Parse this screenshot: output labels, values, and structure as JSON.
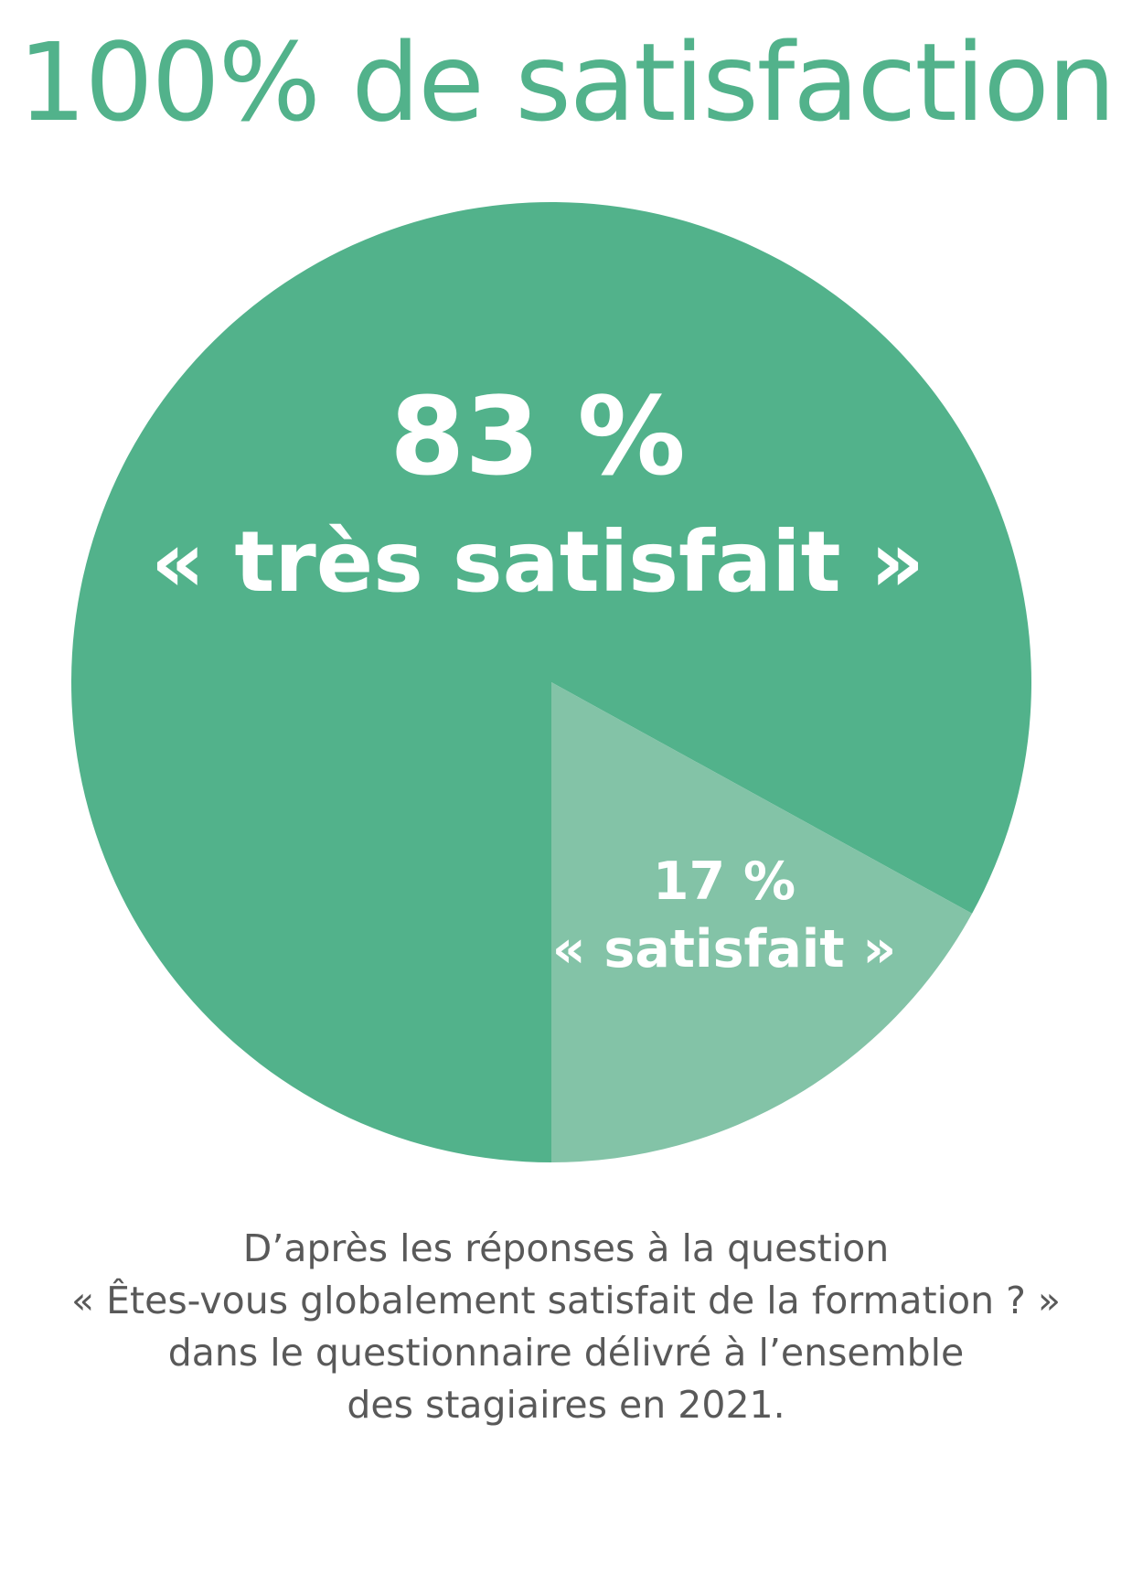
{
  "title": "100% de satisfaction",
  "colors": {
    "accent": "#52b28b",
    "slice_primary": "#52b28b",
    "slice_secondary": "#83c3a7",
    "label_text": "#ffffff",
    "caption_text": "#595959"
  },
  "chart_data": {
    "type": "pie",
    "title": "100% de satisfaction",
    "slices": [
      {
        "label": "« très satisfait »",
        "value": 83,
        "value_label": "83 %",
        "color": "#52b28b"
      },
      {
        "label": "« satisfait »",
        "value": 17,
        "value_label": "17 %",
        "color": "#83c3a7"
      }
    ]
  },
  "caption": {
    "lines": [
      "D’après les réponses à la question",
      "« Êtes-vous globalement satisfait de la formation ? »",
      "dans le questionnaire délivré à l’ensemble",
      "des stagiaires en 2021."
    ]
  }
}
